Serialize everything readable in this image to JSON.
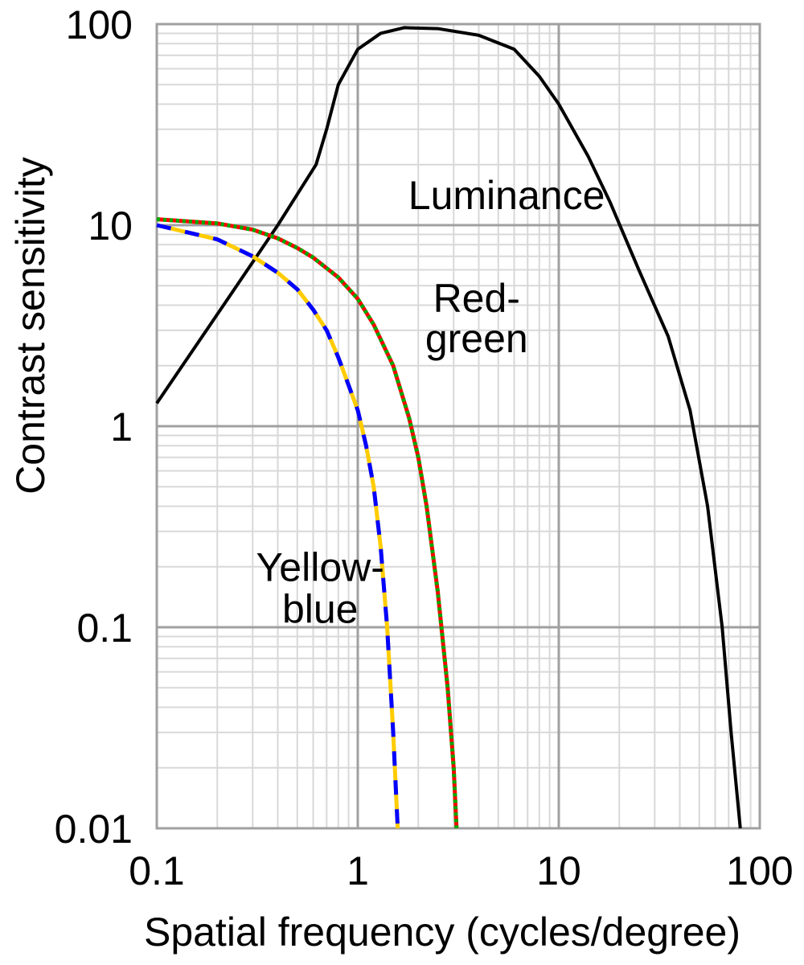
{
  "chart_data": {
    "type": "line",
    "title": "",
    "xlabel": "Spatial frequency (cycles/degree)",
    "ylabel": "Contrast sensitivity",
    "xscale": "log",
    "yscale": "log",
    "xlim": [
      0.1,
      100
    ],
    "ylim": [
      0.01,
      100
    ],
    "grid": true,
    "legend": "none",
    "x_ticks": [
      {
        "value": 0.1,
        "label": "0.1"
      },
      {
        "value": 1,
        "label": "1"
      },
      {
        "value": 10,
        "label": "10"
      },
      {
        "value": 100,
        "label": "100"
      }
    ],
    "y_ticks": [
      {
        "value": 0.01,
        "label": "0.01"
      },
      {
        "value": 0.1,
        "label": "0.1"
      },
      {
        "value": 1,
        "label": "1"
      },
      {
        "value": 10,
        "label": "10"
      },
      {
        "value": 100,
        "label": "100"
      }
    ],
    "series": [
      {
        "key": "luminance",
        "label_lines": [
          "Luminance"
        ],
        "colors": [
          "#000000"
        ],
        "style": "solid",
        "points": [
          [
            0.1,
            1.3
          ],
          [
            0.2,
            3.6
          ],
          [
            0.4,
            10
          ],
          [
            0.62,
            20
          ],
          [
            0.7,
            30
          ],
          [
            0.8,
            50
          ],
          [
            1.0,
            75
          ],
          [
            1.3,
            90
          ],
          [
            1.7,
            96
          ],
          [
            2.5,
            95
          ],
          [
            4,
            88
          ],
          [
            6,
            75
          ],
          [
            8,
            55
          ],
          [
            10,
            40
          ],
          [
            14,
            22
          ],
          [
            18,
            13
          ],
          [
            25,
            6
          ],
          [
            35,
            2.8
          ],
          [
            45,
            1.2
          ],
          [
            55,
            0.4
          ],
          [
            65,
            0.1
          ],
          [
            72,
            0.03
          ],
          [
            80,
            0.01
          ]
        ]
      },
      {
        "key": "red-green",
        "label_lines": [
          "Red-",
          "green"
        ],
        "colors": [
          "#ff0000",
          "#00aa00"
        ],
        "style": "dotted",
        "points": [
          [
            0.1,
            10.7
          ],
          [
            0.2,
            10.2
          ],
          [
            0.3,
            9.5
          ],
          [
            0.4,
            8.6
          ],
          [
            0.5,
            7.7
          ],
          [
            0.6,
            6.9
          ],
          [
            0.8,
            5.5
          ],
          [
            1.0,
            4.3
          ],
          [
            1.2,
            3.2
          ],
          [
            1.5,
            2.0
          ],
          [
            1.8,
            1.1
          ],
          [
            2.0,
            0.7
          ],
          [
            2.2,
            0.4
          ],
          [
            2.5,
            0.15
          ],
          [
            2.8,
            0.05
          ],
          [
            3.0,
            0.02
          ],
          [
            3.1,
            0.01
          ]
        ]
      },
      {
        "key": "yellow-blue",
        "label_lines": [
          "Yellow-",
          "blue"
        ],
        "colors": [
          "#ffcc00",
          "#0000ff"
        ],
        "style": "dashed",
        "points": [
          [
            0.1,
            10.0
          ],
          [
            0.2,
            8.5
          ],
          [
            0.3,
            7.0
          ],
          [
            0.4,
            5.8
          ],
          [
            0.5,
            4.8
          ],
          [
            0.6,
            3.8
          ],
          [
            0.7,
            3.0
          ],
          [
            0.8,
            2.2
          ],
          [
            0.9,
            1.6
          ],
          [
            1.0,
            1.2
          ],
          [
            1.1,
            0.8
          ],
          [
            1.2,
            0.5
          ],
          [
            1.3,
            0.25
          ],
          [
            1.4,
            0.1
          ],
          [
            1.5,
            0.03
          ],
          [
            1.58,
            0.01
          ]
        ]
      }
    ]
  }
}
